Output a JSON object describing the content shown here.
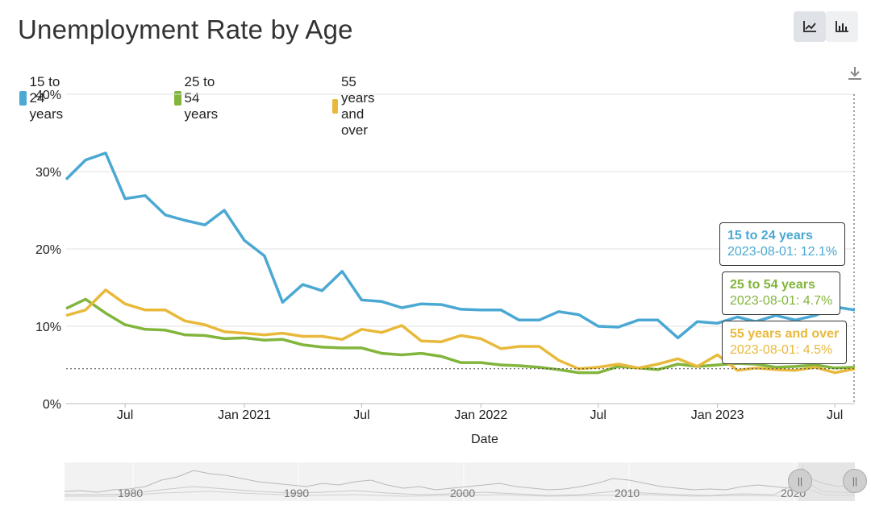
{
  "title": "Unemployment Rate by Age",
  "toolbar": {
    "line_view_icon": "line-chart-icon",
    "bar_view_icon": "bar-chart-icon",
    "download_icon": "download-icon"
  },
  "chart_data": {
    "type": "line",
    "title": "Unemployment Rate by Age",
    "xlabel": "Date",
    "ylabel": "",
    "ylim": [
      0,
      40
    ],
    "y_ticks": [
      "0%",
      "10%",
      "20%",
      "30%",
      "40%"
    ],
    "x_tick_labels": [
      "Jul",
      "Jan 2021",
      "Jul",
      "Jan 2022",
      "Jul",
      "Jan 2023",
      "Jul"
    ],
    "x_tick_dates": [
      "2020-07-01",
      "2021-01-01",
      "2021-07-01",
      "2022-01-01",
      "2022-07-01",
      "2023-01-01",
      "2023-07-01"
    ],
    "x_range": [
      "2020-04-01",
      "2023-08-01"
    ],
    "grid": true,
    "legend_position": "top-left",
    "x": [
      "2020-04-01",
      "2020-05-01",
      "2020-06-01",
      "2020-07-01",
      "2020-08-01",
      "2020-09-01",
      "2020-10-01",
      "2020-11-01",
      "2020-12-01",
      "2021-01-01",
      "2021-02-01",
      "2021-03-01",
      "2021-04-01",
      "2021-05-01",
      "2021-06-01",
      "2021-07-01",
      "2021-08-01",
      "2021-09-01",
      "2021-10-01",
      "2021-11-01",
      "2021-12-01",
      "2022-01-01",
      "2022-02-01",
      "2022-03-01",
      "2022-04-01",
      "2022-05-01",
      "2022-06-01",
      "2022-07-01",
      "2022-08-01",
      "2022-09-01",
      "2022-10-01",
      "2022-11-01",
      "2022-12-01",
      "2023-01-01",
      "2023-02-01",
      "2023-03-01",
      "2023-04-01",
      "2023-05-01",
      "2023-06-01",
      "2023-07-01",
      "2023-08-01"
    ],
    "series": [
      {
        "name": "15 to 24 years",
        "color": "#4aa8d3",
        "values": [
          29.0,
          31.5,
          32.4,
          26.5,
          26.9,
          24.4,
          23.7,
          23.1,
          25.0,
          21.1,
          19.1,
          13.1,
          15.4,
          14.6,
          17.1,
          13.4,
          13.2,
          12.4,
          12.9,
          12.8,
          12.2,
          12.1,
          12.1,
          10.8,
          10.8,
          11.9,
          11.5,
          10.0,
          9.9,
          10.8,
          10.8,
          8.5,
          10.6,
          10.4,
          11.2,
          10.6,
          11.4,
          10.8,
          11.4,
          12.5,
          12.1
        ]
      },
      {
        "name": "25 to 54 years",
        "color": "#82b53c",
        "values": [
          12.3,
          13.5,
          11.7,
          10.2,
          9.6,
          9.5,
          8.9,
          8.8,
          8.4,
          8.5,
          8.2,
          8.3,
          7.6,
          7.3,
          7.2,
          7.2,
          6.5,
          6.3,
          6.5,
          6.1,
          5.3,
          5.3,
          5.0,
          4.9,
          4.7,
          4.4,
          4.0,
          4.0,
          4.8,
          4.6,
          4.4,
          5.1,
          4.8,
          5.0,
          5.2,
          5.1,
          4.7,
          4.8,
          5.0,
          4.6,
          4.7
        ]
      },
      {
        "name": "55 years and over",
        "color": "#e8b93b",
        "values": [
          11.4,
          12.1,
          14.7,
          12.9,
          12.1,
          12.1,
          10.7,
          10.2,
          9.3,
          9.1,
          8.9,
          9.1,
          8.7,
          8.7,
          8.3,
          9.6,
          9.2,
          10.1,
          8.1,
          8.0,
          8.8,
          8.4,
          7.1,
          7.4,
          7.4,
          5.6,
          4.5,
          4.7,
          5.1,
          4.6,
          5.1,
          5.8,
          4.8,
          6.3,
          4.3,
          4.6,
          4.4,
          4.3,
          4.7,
          4.0,
          4.5
        ]
      }
    ],
    "tooltips": [
      {
        "name": "15 to 24 years",
        "text": "2023-08-01: 12.1%",
        "color": "#4aa8d3"
      },
      {
        "name": "25 to 54 years",
        "text": "2023-08-01: 4.7%",
        "color": "#82b53c"
      },
      {
        "name": "55 years and over",
        "text": "2023-08-01: 4.5%",
        "color": "#e8b93b"
      }
    ],
    "crosshair_value": 4.5,
    "navigator": {
      "year_labels": [
        "1980",
        "1990",
        "2000",
        "2010",
        "2020"
      ]
    }
  }
}
